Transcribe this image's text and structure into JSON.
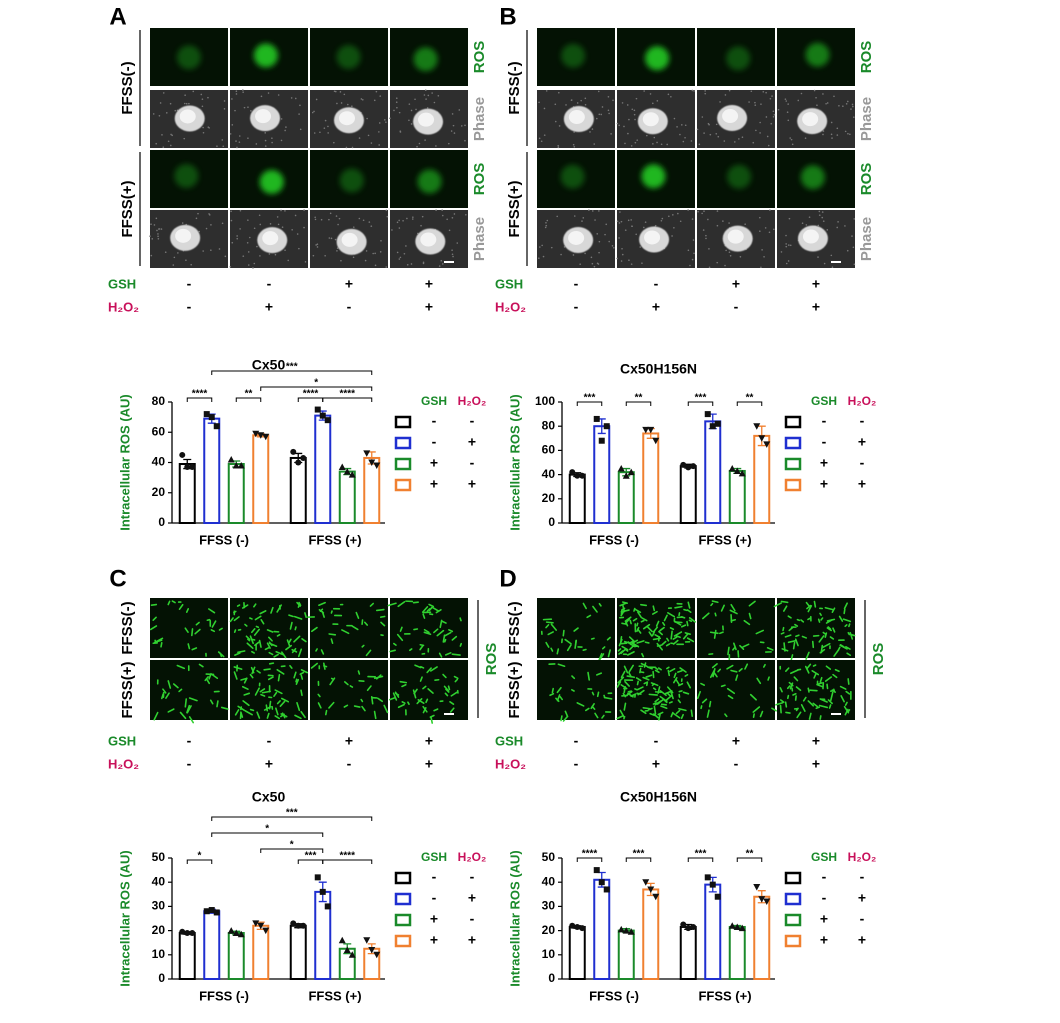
{
  "panels": [
    {
      "label": "A",
      "row_labels": [
        "FFSS(-)",
        "FFSS(+)"
      ],
      "image_labels": [
        "ROS",
        "Phase",
        "ROS",
        "Phase"
      ],
      "treatments": [
        {
          "name": "GSH",
          "signs": [
            "-",
            "-",
            "+",
            "+"
          ]
        },
        {
          "name": "H₂O₂",
          "signs": [
            "-",
            "+",
            "-",
            "+"
          ]
        }
      ]
    },
    {
      "label": "B",
      "row_labels": [
        "FFSS(-)",
        "FFSS(+)"
      ],
      "image_labels": [
        "ROS",
        "Phase",
        "ROS",
        "Phase"
      ],
      "treatments": [
        {
          "name": "GSH",
          "signs": [
            "-",
            "-",
            "+",
            "+"
          ]
        },
        {
          "name": "H₂O₂",
          "signs": [
            "-",
            "+",
            "-",
            "+"
          ]
        }
      ]
    },
    {
      "label": "C",
      "row_labels": [
        "FFSS(-)",
        "FFSS(+)"
      ],
      "image_labels": [
        "ROS"
      ],
      "treatments": [
        {
          "name": "GSH",
          "signs": [
            "-",
            "-",
            "+",
            "+"
          ]
        },
        {
          "name": "H₂O₂",
          "signs": [
            "-",
            "+",
            "-",
            "+"
          ]
        }
      ]
    },
    {
      "label": "D",
      "row_labels": [
        "FFSS(-)",
        "FFSS(+)"
      ],
      "image_labels": [
        "ROS"
      ],
      "treatments": [
        {
          "name": "GSH",
          "signs": [
            "-",
            "-",
            "+",
            "+"
          ]
        },
        {
          "name": "H₂O₂",
          "signs": [
            "-",
            "+",
            "-",
            "+"
          ]
        }
      ]
    }
  ],
  "chart_data": [
    {
      "type": "bar",
      "title": "Cx50",
      "ylabel": "Intracellular ROS (AU)",
      "categories": [
        "FFSS (-)",
        "FFSS (+)"
      ],
      "ylim": [
        0,
        80
      ],
      "yticks": [
        0,
        20,
        40,
        60,
        80
      ],
      "series": [
        {
          "color": "#000000",
          "values": [
            39,
            43
          ],
          "errors": [
            3,
            3
          ],
          "points": [
            [
              45,
              37,
              37
            ],
            [
              47,
              40,
              43
            ]
          ]
        },
        {
          "color": "#1f2fd0",
          "values": [
            69,
            71
          ],
          "errors": [
            3,
            3
          ],
          "points": [
            [
              72,
              70,
              64
            ],
            [
              75,
              71,
              68
            ]
          ]
        },
        {
          "color": "#1a8a2a",
          "values": [
            39,
            34
          ],
          "errors": [
            2,
            2
          ],
          "points": [
            [
              42,
              38,
              38
            ],
            [
              37,
              34,
              32
            ]
          ]
        },
        {
          "color": "#f08030",
          "values": [
            58,
            43
          ],
          "errors": [
            1,
            4
          ],
          "points": [
            [
              59,
              58,
              57
            ],
            [
              46,
              40,
              38
            ]
          ]
        }
      ],
      "legend": {
        "headers": [
          "GSH",
          "H₂O₂"
        ],
        "rows": [
          [
            "-",
            "-"
          ],
          [
            "-",
            "+"
          ],
          [
            "+",
            "-"
          ],
          [
            "+",
            "+"
          ]
        ]
      },
      "comparisons": [
        "***",
        "*",
        "****",
        "**",
        "****",
        "****"
      ]
    },
    {
      "type": "bar",
      "title": "Cx50H156N",
      "ylabel": "Intracellular ROS (AU)",
      "categories": [
        "FFSS (-)",
        "FFSS (+)"
      ],
      "ylim": [
        0,
        100
      ],
      "yticks": [
        0,
        20,
        40,
        60,
        80,
        100
      ],
      "series": [
        {
          "color": "#000000",
          "values": [
            40,
            47
          ],
          "errors": [
            1.5,
            1.5
          ],
          "points": [
            [
              42,
              39,
              39
            ],
            [
              48,
              46,
              47
            ]
          ]
        },
        {
          "color": "#1f2fd0",
          "values": [
            80,
            84
          ],
          "errors": [
            6,
            6
          ],
          "points": [
            [
              86,
              68,
              80
            ],
            [
              90,
              80,
              82
            ]
          ]
        },
        {
          "color": "#1a8a2a",
          "values": [
            42,
            43
          ],
          "errors": [
            3,
            2
          ],
          "points": [
            [
              45,
              39,
              42
            ],
            [
              45,
              43,
              41
            ]
          ]
        },
        {
          "color": "#f08030",
          "values": [
            74,
            72
          ],
          "errors": [
            4,
            8
          ],
          "points": [
            [
              77,
              77,
              68
            ],
            [
              80,
              70,
              65
            ]
          ]
        }
      ],
      "legend": {
        "headers": [
          "GSH",
          "H₂O₂"
        ],
        "rows": [
          [
            "-",
            "-"
          ],
          [
            "-",
            "+"
          ],
          [
            "+",
            "-"
          ],
          [
            "+",
            "+"
          ]
        ]
      },
      "comparisons": [
        "***",
        "**",
        "***",
        "**"
      ]
    },
    {
      "type": "bar",
      "title": "Cx50",
      "ylabel": "Intracellular ROS (AU)",
      "categories": [
        "FFSS (-)",
        "FFSS (+)"
      ],
      "ylim": [
        0,
        50
      ],
      "yticks": [
        0,
        10,
        20,
        30,
        40,
        50
      ],
      "series": [
        {
          "color": "#000000",
          "values": [
            19,
            22
          ],
          "errors": [
            0.5,
            0.8
          ],
          "points": [
            [
              19.5,
              19,
              19
            ],
            [
              23,
              22,
              22
            ]
          ]
        },
        {
          "color": "#1f2fd0",
          "values": [
            28,
            36
          ],
          "errors": [
            0.8,
            4
          ],
          "points": [
            [
              28,
              28.5,
              27.5
            ],
            [
              42,
              36,
              30
            ]
          ]
        },
        {
          "color": "#1a8a2a",
          "values": [
            19,
            12.5
          ],
          "errors": [
            0.7,
            2
          ],
          "points": [
            [
              20,
              19,
              18.5
            ],
            [
              16,
              12,
              10
            ]
          ]
        },
        {
          "color": "#f08030",
          "values": [
            22,
            12.5
          ],
          "errors": [
            1.5,
            2
          ],
          "points": [
            [
              23,
              22,
              20
            ],
            [
              16,
              12,
              10
            ]
          ]
        }
      ],
      "legend": {
        "headers": [
          "GSH",
          "H₂O₂"
        ],
        "rows": [
          [
            "-",
            "-"
          ],
          [
            "-",
            "+"
          ],
          [
            "+",
            "-"
          ],
          [
            "+",
            "+"
          ]
        ]
      },
      "comparisons": [
        "***",
        "*",
        "*",
        "*",
        "***",
        "****"
      ]
    },
    {
      "type": "bar",
      "title": "Cx50H156N",
      "ylabel": "Intracellular ROS (AU)",
      "categories": [
        "FFSS (-)",
        "FFSS (+)"
      ],
      "ylim": [
        0,
        50
      ],
      "yticks": [
        0,
        10,
        20,
        30,
        40,
        50
      ],
      "series": [
        {
          "color": "#000000",
          "values": [
            21.5,
            21.5
          ],
          "errors": [
            0.5,
            1
          ],
          "points": [
            [
              22,
              21.5,
              21
            ],
            [
              22.5,
              21,
              21.5
            ]
          ]
        },
        {
          "color": "#1f2fd0",
          "values": [
            41,
            39
          ],
          "errors": [
            3,
            3
          ],
          "points": [
            [
              45,
              40,
              37
            ],
            [
              42,
              39,
              34
            ]
          ]
        },
        {
          "color": "#1a8a2a",
          "values": [
            20,
            21.5
          ],
          "errors": [
            0.8,
            0.6
          ],
          "points": [
            [
              20.5,
              20,
              19.5
            ],
            [
              22,
              21.5,
              21
            ]
          ]
        },
        {
          "color": "#f08030",
          "values": [
            37,
            34
          ],
          "errors": [
            2.5,
            2.5
          ],
          "points": [
            [
              40,
              37,
              34
            ],
            [
              38,
              33,
              32
            ]
          ]
        }
      ],
      "legend": {
        "headers": [
          "GSH",
          "H₂O₂"
        ],
        "rows": [
          [
            "-",
            "-"
          ],
          [
            "-",
            "+"
          ],
          [
            "+",
            "-"
          ],
          [
            "+",
            "+"
          ]
        ]
      },
      "comparisons": [
        "****",
        "***",
        "***",
        "**"
      ]
    }
  ]
}
